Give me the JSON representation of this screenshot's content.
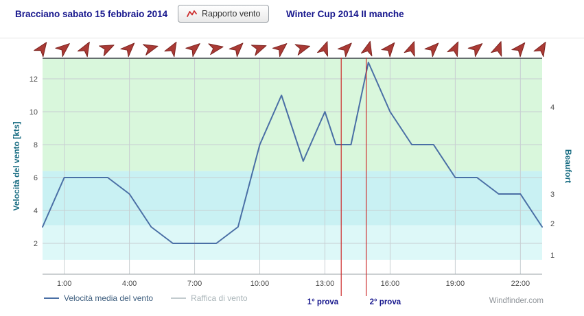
{
  "header": {
    "title_left": "Bracciano sabato 15 febbraio 2014",
    "button_label": "Rapporto vento",
    "button_icon": "wind-report-zigzag-icon",
    "title_right": "Winter Cup 2014 II manche"
  },
  "chart_data": {
    "type": "line",
    "ylabel_left": "Velocità del vento [kts]",
    "ylabel_right": "Beaufort",
    "xlim": [
      0,
      23
    ],
    "ylim": [
      0,
      13.25
    ],
    "grid": true,
    "x_ticks": [
      "1:00",
      "4:00",
      "7:00",
      "10:00",
      "13:00",
      "16:00",
      "19:00",
      "22:00"
    ],
    "x_tick_hours": [
      1,
      4,
      7,
      10,
      13,
      16,
      19,
      22
    ],
    "y_ticks": [
      2,
      4,
      6,
      8,
      10,
      12
    ],
    "beaufort_ticks": [
      {
        "label": "4",
        "kts": 10.3
      },
      {
        "label": "3",
        "kts": 5.0
      },
      {
        "label": "2",
        "kts": 3.2
      },
      {
        "label": "1",
        "kts": 1.3
      }
    ],
    "bands": [
      {
        "from": 1.0,
        "to": 3.1,
        "color": "#ddf8f8"
      },
      {
        "from": 3.1,
        "to": 6.4,
        "color": "#c9f1f3"
      },
      {
        "from": 6.4,
        "to": 13.25,
        "color": "#d9f7dc"
      }
    ],
    "series": [
      {
        "name": "Velocità media del vento",
        "color": "#4a6fa5",
        "points": [
          {
            "t": 0,
            "v": 3
          },
          {
            "t": 1,
            "v": 6
          },
          {
            "t": 2,
            "v": 6
          },
          {
            "t": 3,
            "v": 6
          },
          {
            "t": 4,
            "v": 5
          },
          {
            "t": 5,
            "v": 3
          },
          {
            "t": 6,
            "v": 2
          },
          {
            "t": 7,
            "v": 2
          },
          {
            "t": 8,
            "v": 2
          },
          {
            "t": 9,
            "v": 3
          },
          {
            "t": 10,
            "v": 8
          },
          {
            "t": 11,
            "v": 11
          },
          {
            "t": 12,
            "v": 7
          },
          {
            "t": 13,
            "v": 10
          },
          {
            "t": 13.5,
            "v": 8
          },
          {
            "t": 14.2,
            "v": 8
          },
          {
            "t": 15,
            "v": 13
          },
          {
            "t": 16,
            "v": 10
          },
          {
            "t": 17,
            "v": 8
          },
          {
            "t": 18,
            "v": 8
          },
          {
            "t": 19,
            "v": 6
          },
          {
            "t": 20,
            "v": 6
          },
          {
            "t": 21,
            "v": 5
          },
          {
            "t": 22,
            "v": 5
          },
          {
            "t": 23,
            "v": 3
          }
        ]
      }
    ],
    "wind_arrows": {
      "color": "#aa3a35",
      "outline": "#7c2420",
      "rotations": [
        -55,
        -40,
        -60,
        -25,
        -45,
        -15,
        -60,
        -40,
        -10,
        -45,
        -20,
        -40,
        -15,
        -70,
        -45,
        -75,
        -50,
        -70,
        -45,
        -65,
        -40,
        -70,
        -50,
        -60
      ]
    },
    "marker_color": "#cc2a2a",
    "markers": [
      {
        "label": "1° prova",
        "hour": 13.75,
        "label_side": "left"
      },
      {
        "label": "2° prova",
        "hour": 14.9,
        "label_side": "right"
      }
    ]
  },
  "legend": {
    "items": [
      {
        "label": "Velocità media del vento",
        "color": "#4a6fa5",
        "muted": false
      },
      {
        "label": "Raffica di vento",
        "color": "#c2cbce",
        "muted": true
      }
    ]
  },
  "footer": {
    "watermark": "Windfinder.com"
  }
}
